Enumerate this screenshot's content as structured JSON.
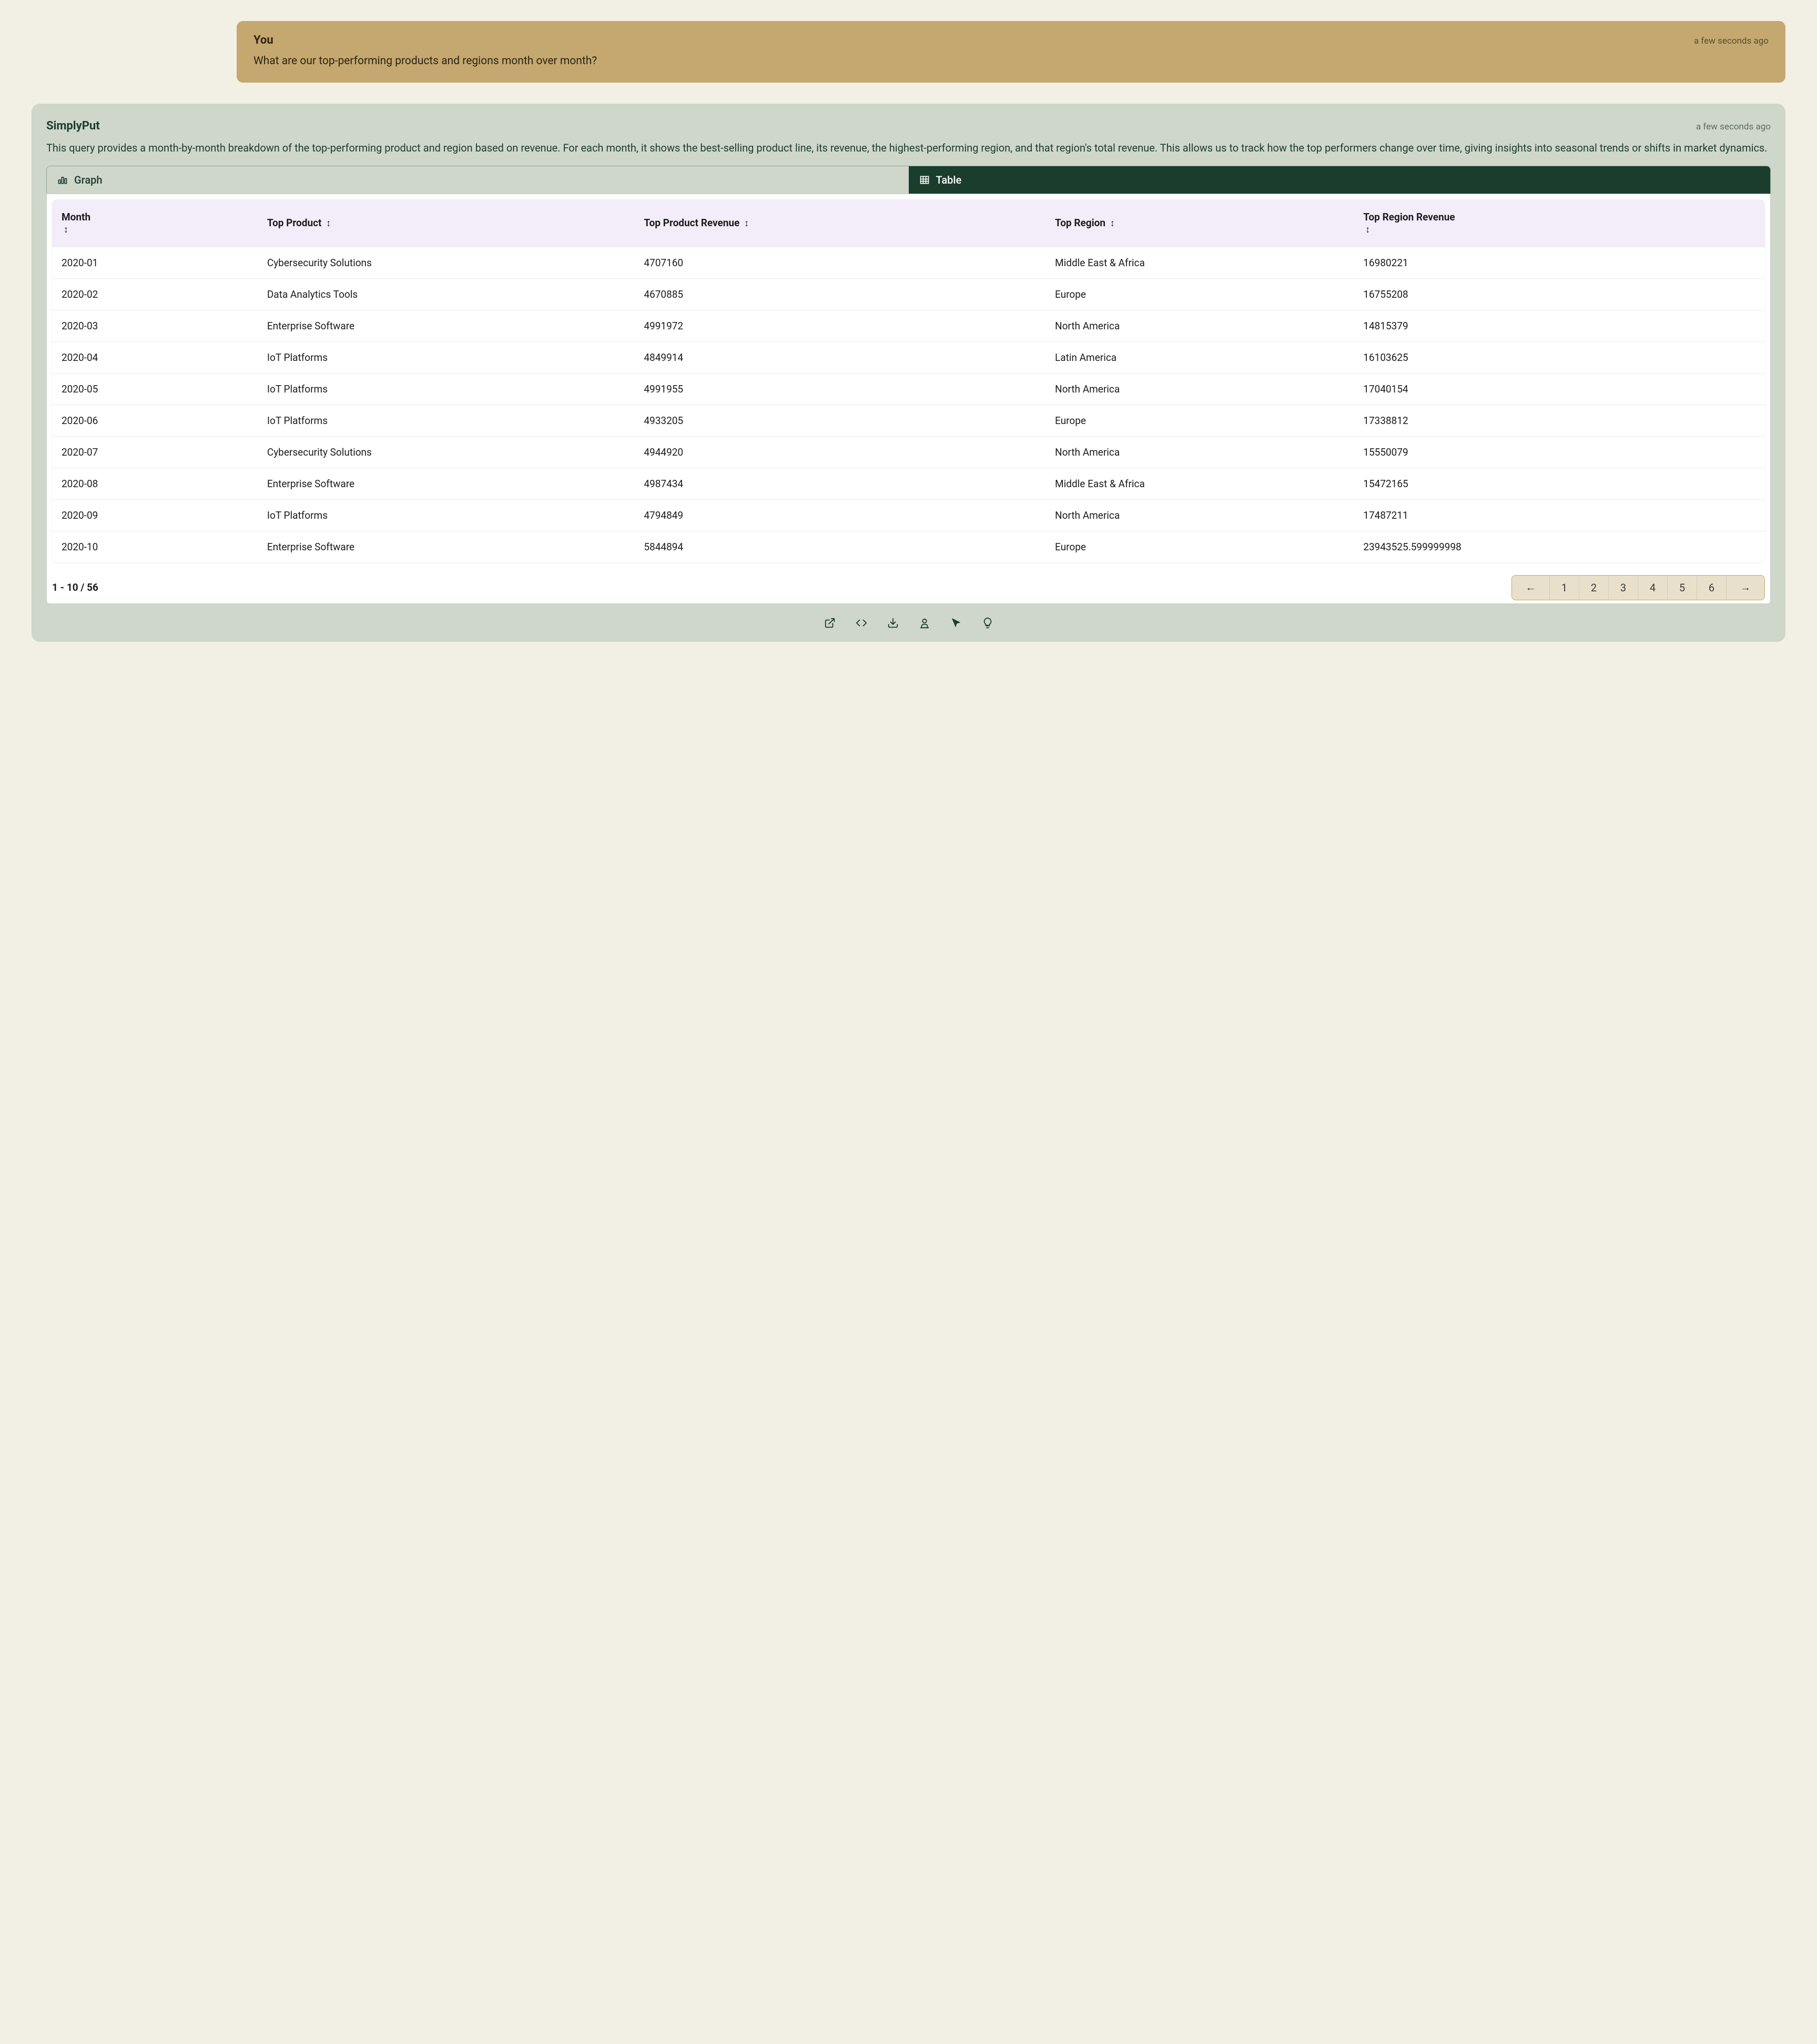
{
  "user_message": {
    "label": "You",
    "timestamp": "a few seconds ago",
    "text": "What are our top-performing products and regions month over month?"
  },
  "response": {
    "title": "SimplyPut",
    "timestamp": "a few seconds ago",
    "body": "This query provides a month-by-month breakdown of the top-performing product and region based on revenue. For each month, it shows the best-selling product line, its revenue, the highest-performing region, and that region's total revenue. This allows us to track how the top performers change over time, giving insights into seasonal trends or shifts in market dynamics."
  },
  "tabs": {
    "graph": "Graph",
    "table": "Table",
    "active": "table"
  },
  "table": {
    "columns": [
      "Month",
      "Top Product",
      "Top Product Revenue",
      "Top Region",
      "Top Region Revenue"
    ],
    "column_widths": [
      "12%",
      "22%",
      "24%",
      "18%",
      "24%"
    ],
    "header_bg": "#f3edf9",
    "row_border": "#ececec",
    "rows": [
      [
        "2020-01",
        "Cybersecurity Solutions",
        "4707160",
        "Middle East & Africa",
        "16980221"
      ],
      [
        "2020-02",
        "Data Analytics Tools",
        "4670885",
        "Europe",
        "16755208"
      ],
      [
        "2020-03",
        "Enterprise Software",
        "4991972",
        "North America",
        "14815379"
      ],
      [
        "2020-04",
        "IoT Platforms",
        "4849914",
        "Latin America",
        "16103625"
      ],
      [
        "2020-05",
        "IoT Platforms",
        "4991955",
        "North America",
        "17040154"
      ],
      [
        "2020-06",
        "IoT Platforms",
        "4933205",
        "Europe",
        "17338812"
      ],
      [
        "2020-07",
        "Cybersecurity Solutions",
        "4944920",
        "North America",
        "15550079"
      ],
      [
        "2020-08",
        "Enterprise Software",
        "4987434",
        "Middle East & Africa",
        "15472165"
      ],
      [
        "2020-09",
        "IoT Platforms",
        "4794849",
        "North America",
        "17487211"
      ],
      [
        "2020-10",
        "Enterprise Software",
        "5844894",
        "Europe",
        "23943525.599999998"
      ]
    ]
  },
  "pagination": {
    "range": "1 - 10 / 56",
    "prev": "←",
    "next": "→",
    "pages": [
      "1",
      "2",
      "3",
      "4",
      "5",
      "6"
    ],
    "bg_color": "#e9e0cb",
    "border_color": "#c4a86f"
  },
  "actions": {
    "open": "open-external-icon",
    "code": "code-icon",
    "download": "download-icon",
    "user": "save-user-icon",
    "cursor": "cursor-icon",
    "hint": "lightbulb-icon"
  },
  "colors": {
    "page_bg": "#f2efe5",
    "user_bubble_bg": "#c4a86f",
    "response_bg": "#cfd6ca",
    "dark_green": "#1a3d2e",
    "text_dark": "#1c1c1c"
  }
}
